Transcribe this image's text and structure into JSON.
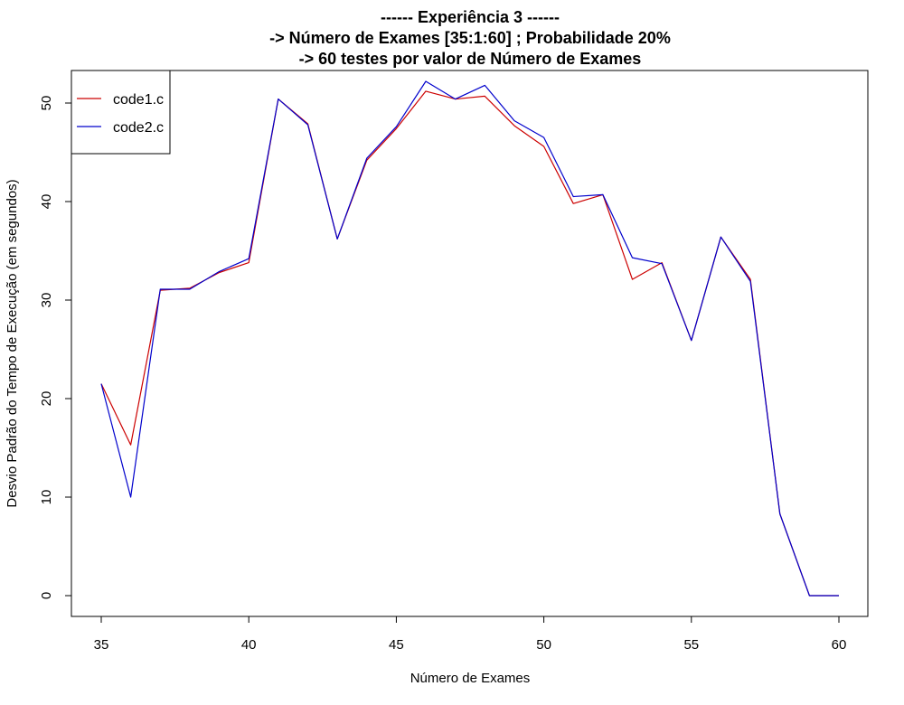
{
  "chart_data": {
    "type": "line",
    "title_lines": [
      "------ Experiência 3 ------",
      "-> Número de Exames [35:1:60] ; Probabilidade 20%",
      "-> 60 testes por valor de Número de Exames"
    ],
    "xlabel": "Número de Exames",
    "ylabel": "Desvio Padrão do Tempo de Execução (em segundos)",
    "xlim": [
      35,
      60
    ],
    "ylim": [
      0,
      52
    ],
    "x_ticks": [
      35,
      40,
      45,
      50,
      55,
      60
    ],
    "y_ticks": [
      0,
      10,
      20,
      30,
      40,
      50
    ],
    "grid": false,
    "legend_position": "top-left",
    "x": [
      35,
      36,
      37,
      38,
      39,
      40,
      41,
      42,
      43,
      44,
      45,
      46,
      47,
      48,
      49,
      50,
      51,
      52,
      53,
      54,
      55,
      56,
      57,
      58,
      59,
      60
    ],
    "series": [
      {
        "name": "code1.c",
        "color": "#cc0000",
        "values": [
          21.5,
          15.3,
          31.0,
          31.2,
          32.8,
          33.8,
          50.4,
          47.9,
          36.2,
          44.2,
          47.4,
          51.2,
          50.4,
          50.7,
          47.7,
          45.6,
          39.8,
          40.7,
          32.1,
          33.8,
          25.9,
          36.4,
          32.1,
          8.3,
          0.0,
          0.0
        ]
      },
      {
        "name": "code2.c",
        "color": "#0000cc",
        "values": [
          21.5,
          10.0,
          31.1,
          31.1,
          32.9,
          34.2,
          50.4,
          47.8,
          36.2,
          44.4,
          47.6,
          52.2,
          50.4,
          51.8,
          48.2,
          46.5,
          40.5,
          40.7,
          34.3,
          33.7,
          25.9,
          36.4,
          31.9,
          8.3,
          0.0,
          0.0
        ]
      }
    ]
  }
}
